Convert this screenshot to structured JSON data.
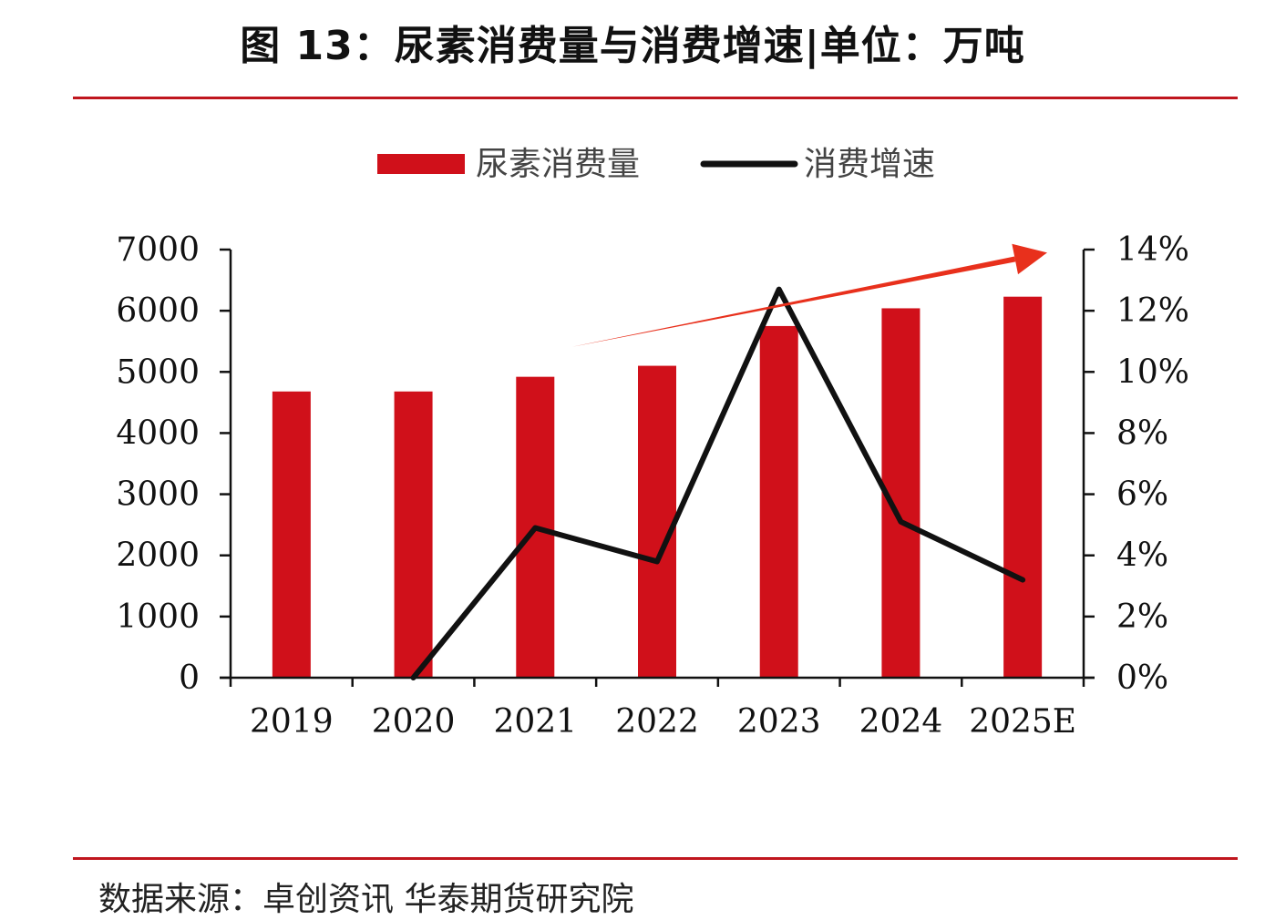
{
  "title": "图 13：尿素消费量与消费增速|单位：万吨",
  "source": "数据来源：卓创资讯  华泰期货研究院",
  "colors": {
    "bar": "#d0101a",
    "line": "#111111",
    "accent": "#c0161e",
    "trend_arrow": "#e8301c"
  },
  "chart_data": {
    "type": "bar",
    "categories": [
      "2019",
      "2020",
      "2021",
      "2022",
      "2023",
      "2024",
      "2025E"
    ],
    "series": [
      {
        "name": "尿素消费量",
        "type": "bar",
        "axis": "left",
        "values": [
          4680,
          4680,
          4920,
          5100,
          5750,
          6040,
          6230
        ]
      },
      {
        "name": "消费增速",
        "type": "line",
        "axis": "right",
        "values": [
          null,
          0.0,
          4.9,
          3.8,
          12.7,
          5.1,
          3.2
        ]
      }
    ],
    "ylim": [
      0,
      7000
    ],
    "y2lim": [
      0,
      14
    ],
    "yticks": [
      "0",
      "1000",
      "2000",
      "3000",
      "4000",
      "5000",
      "6000",
      "7000"
    ],
    "y2ticks": [
      "0%",
      "2%",
      "4%",
      "6%",
      "8%",
      "10%",
      "12%",
      "14%"
    ],
    "legend_position": "top-center",
    "grid": false,
    "annotations": [
      {
        "type": "trend-arrow",
        "from_category": "2021",
        "from_y2": 10.8,
        "to_category_after": "2025E",
        "to_y2": 13.9
      }
    ]
  }
}
